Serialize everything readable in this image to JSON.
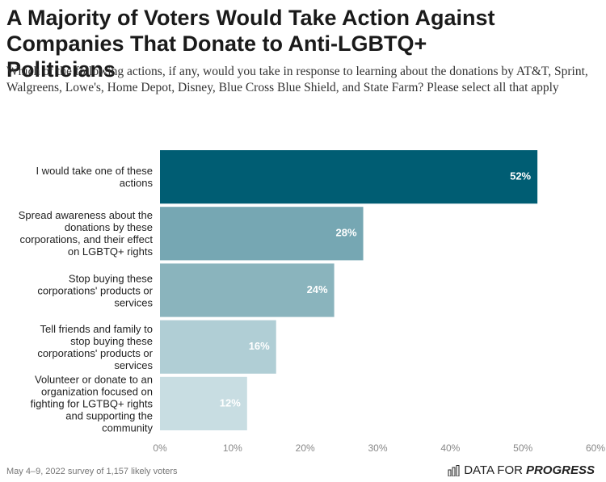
{
  "chart_data": {
    "type": "bar",
    "orientation": "horizontal",
    "title": "A Majority of Voters Would Take Action Against Companies That Donate to Anti-LGBTQ+ Politicians",
    "subtitle": "Which of the following actions, if any, would you take in response to learning about the donations by AT&T, Sprint, Walgreens, Lowe's, Home Depot, Disney, Blue Cross Blue Shield, and State Farm? Please select all that apply",
    "categories": [
      "I would take one of these\nactions",
      "Spread awareness about the\ndonations by these\ncorporations, and their effect\non LGBTQ+ rights",
      "Stop buying these\ncorporations' products or\nservices",
      "Tell friends and family to\nstop buying these\ncorporations' products or\nservices",
      "Volunteer or donate to an\norganization focused on\nfighting for LGTBQ+ rights\nand supporting the\ncommunity"
    ],
    "values": [
      52,
      28,
      24,
      16,
      12
    ],
    "value_labels": [
      "52%",
      "28%",
      "24%",
      "16%",
      "12%"
    ],
    "colors": [
      "#005d73",
      "#76a7b3",
      "#8ab4bd",
      "#b0ced5",
      "#c8dde2"
    ],
    "xlim": [
      0,
      60
    ],
    "xticks": [
      {
        "value": 0,
        "label": "0%"
      },
      {
        "value": 10,
        "label": "10%"
      },
      {
        "value": 20,
        "label": "20%"
      },
      {
        "value": 30,
        "label": "30%"
      },
      {
        "value": 40,
        "label": "40%"
      },
      {
        "value": 50,
        "label": "50%"
      },
      {
        "value": 60,
        "label": "60%"
      }
    ],
    "grid": false,
    "footnote": "May 4–9, 2022 survey of 1,157 likely voters",
    "logo_prefix": "DATA FOR",
    "logo_emphasis": "PROGRESS"
  }
}
